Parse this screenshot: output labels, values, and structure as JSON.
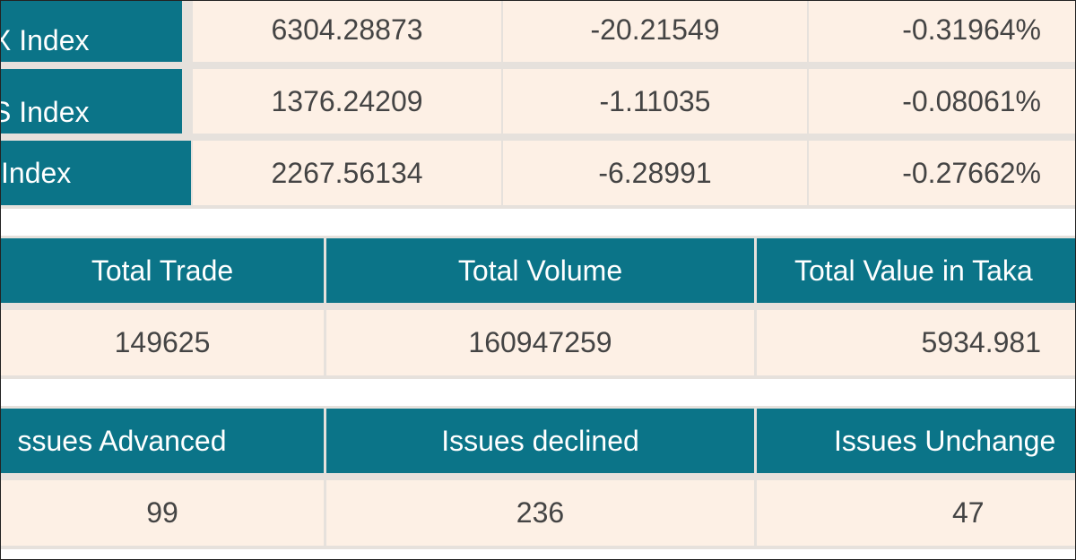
{
  "index_table": {
    "rows": [
      [
        "X Index",
        "6304.28873",
        "-20.21549",
        "-0.31964%"
      ],
      [
        "S Index",
        "1376.24209",
        "-1.11035",
        "-0.08061%"
      ],
      [
        "Index",
        "2267.56134",
        "-6.28991",
        "-0.27662%"
      ]
    ]
  },
  "summary_table": {
    "headers": [
      "Total Trade",
      "Total Volume",
      "Total Value in Taka"
    ],
    "rows": [
      [
        "149625",
        "160947259",
        "5934.981"
      ]
    ]
  },
  "issues_table": {
    "headers": [
      "ssues Advanced",
      "Issues declined",
      "Issues Unchange"
    ],
    "rows": [
      [
        "99",
        "236",
        "47"
      ]
    ]
  }
}
